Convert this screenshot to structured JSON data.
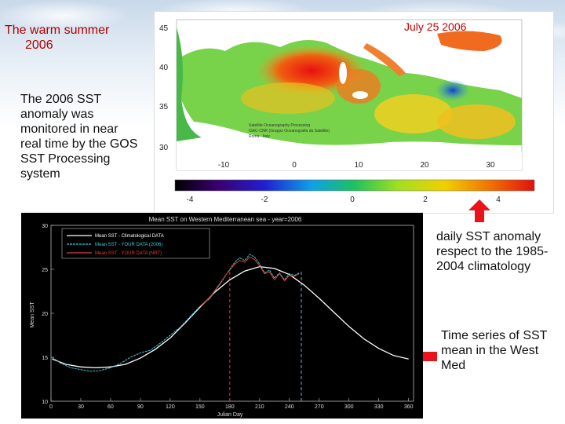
{
  "slide": {
    "title_line1": "The warm summer",
    "title_line2": "2006",
    "intro": "The 2006 SST anomaly was monitored  in near real time by the GOS SST Processing system",
    "anomaly_note": "daily SST anomaly respect to the 1985-2004 climatology",
    "timeseries_note": "Time series of SST mean in the West Med"
  },
  "map": {
    "date": "July 25 2006",
    "lat_labels": [
      "45",
      "40",
      "35",
      "30"
    ],
    "lon_labels": [
      "-10",
      "0",
      "10",
      "20",
      "30"
    ],
    "colorbar_labels": [
      "-4",
      "-2",
      "0",
      "2",
      "4"
    ],
    "credit_lines": [
      "Satellite Oceanography Processing",
      "ISAC-CNR (Gruppo Oceanografia da Satellite)",
      "Roma - Italy"
    ]
  },
  "chart_data": {
    "type": "line",
    "title": "Mean SST on Western Mediterranean sea - year=2006",
    "xlabel": "Julian Day",
    "ylabel": "Mean SST",
    "xlim": [
      0,
      365
    ],
    "ylim": [
      10,
      30
    ],
    "x_ticks": [
      0,
      30,
      60,
      90,
      120,
      150,
      180,
      210,
      240,
      270,
      300,
      330,
      360
    ],
    "y_ticks": [
      10,
      15,
      20,
      25,
      30
    ],
    "legend": [
      "Mean SST - Climatological DATA",
      "Mean SST - YOUR DATA (2006)",
      "Mean SST - YOUR DATA (NRT)"
    ],
    "series": [
      {
        "name": "Mean SST - Climatological DATA",
        "color": "#ffffff",
        "x": [
          1,
          15,
          30,
          45,
          60,
          75,
          90,
          105,
          120,
          135,
          150,
          165,
          180,
          195,
          210,
          225,
          240,
          255,
          270,
          285,
          300,
          315,
          330,
          345,
          360
        ],
        "y": [
          14.8,
          14.2,
          13.9,
          13.8,
          13.9,
          14.2,
          14.9,
          15.9,
          17.2,
          18.9,
          20.7,
          22.4,
          23.8,
          24.8,
          25.3,
          25.1,
          24.4,
          23.2,
          21.7,
          20.1,
          18.5,
          17.1,
          16.0,
          15.2,
          14.8
        ]
      },
      {
        "name": "Mean SST - YOUR DATA (2006)",
        "color": "#3fc7d6",
        "x": [
          1,
          10,
          20,
          30,
          40,
          50,
          60,
          70,
          80,
          90,
          100,
          110,
          120,
          130,
          140,
          150,
          160,
          170,
          180,
          185,
          190,
          195,
          200,
          205,
          210,
          215,
          220,
          225,
          230,
          235,
          240,
          245,
          250
        ],
        "y": [
          15.0,
          14.3,
          13.8,
          13.6,
          13.4,
          13.5,
          13.8,
          14.3,
          15.0,
          15.5,
          15.8,
          16.6,
          17.5,
          18.4,
          19.6,
          20.8,
          21.7,
          23.3,
          25.0,
          25.8,
          26.3,
          26.0,
          26.7,
          26.4,
          25.6,
          24.6,
          24.9,
          24.0,
          24.6,
          23.8,
          24.5,
          24.3,
          24.6
        ]
      },
      {
        "name": "Mean SST - YOUR DATA (NRT)",
        "color": "#e03a3a",
        "x": [
          150,
          155,
          160,
          165,
          170,
          175,
          180,
          185,
          190,
          195,
          200,
          205,
          210,
          215,
          220,
          225,
          230,
          235,
          240,
          245,
          250
        ],
        "y": [
          20.8,
          21.3,
          21.8,
          22.6,
          23.4,
          24.2,
          24.9,
          25.6,
          26.0,
          25.8,
          26.4,
          26.1,
          25.4,
          24.5,
          24.7,
          23.8,
          24.5,
          23.7,
          24.3,
          24.2,
          24.5
        ]
      }
    ],
    "markers": [
      {
        "x": 180,
        "color": "#e03a3a"
      },
      {
        "x": 252,
        "color": "#3fc7d6"
      }
    ]
  },
  "colors": {
    "title": "#b00000",
    "arrow": "#e8141a",
    "chart_bg": "#000000"
  }
}
